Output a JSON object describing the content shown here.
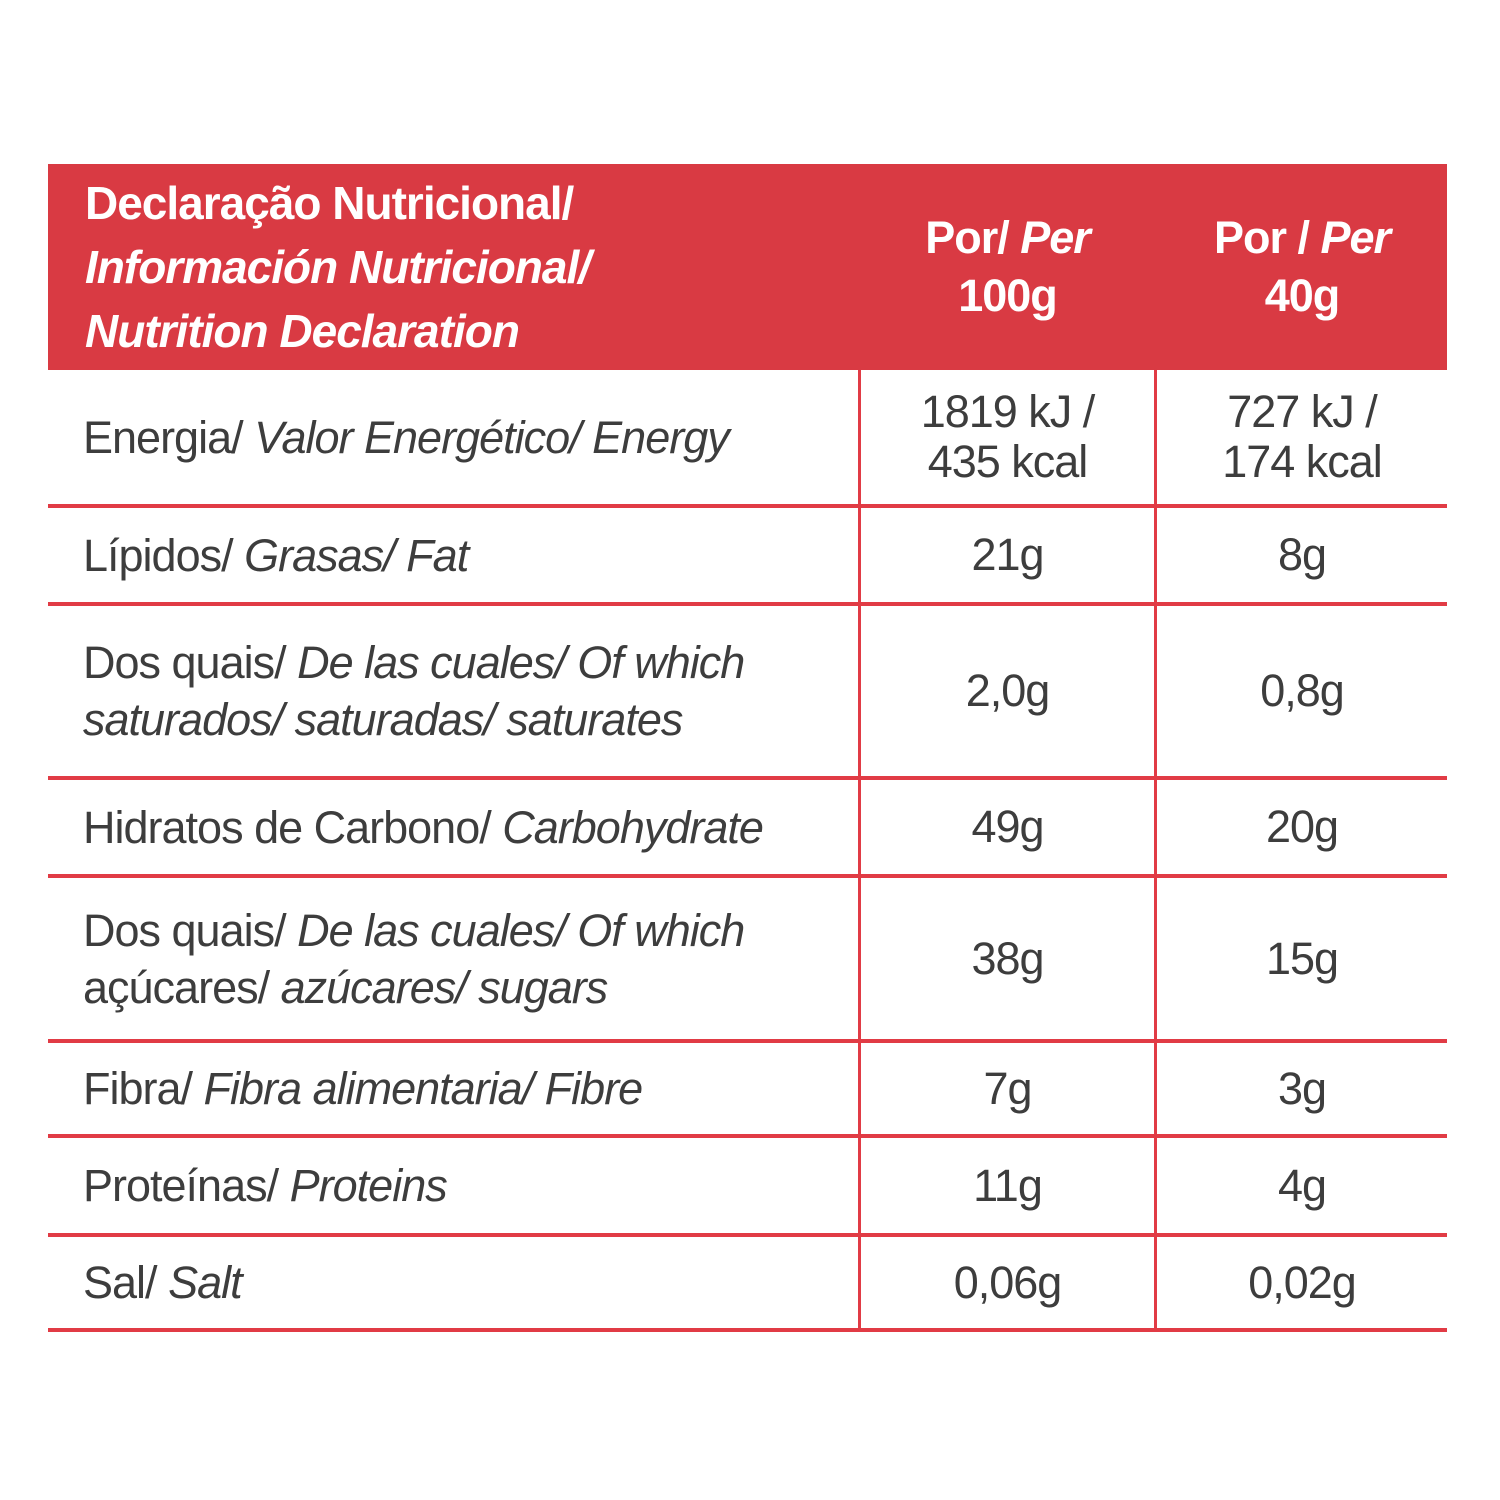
{
  "colors": {
    "header_bg": "#d93a43",
    "grid_line": "#e13b45",
    "header_text": "#ffffff",
    "body_text": "#3d3d3d",
    "background": "#ffffff"
  },
  "header": {
    "title_line1": "Declaração Nutricional/",
    "title_line2": "Información Nutricional/",
    "title_line3": "Nutrition Declaration",
    "col1_upright": "Por/",
    "col1_italic": "Per",
    "col1_amount": "100g",
    "col2_upright": "Por /",
    "col2_italic": "Per",
    "col2_amount": "40g"
  },
  "rows": [
    {
      "l1_pt": "Energia/",
      "l1_rest": "Valor Energético/ Energy",
      "v100_l1": "1819 kJ /",
      "v100_l2": "435 kcal",
      "v40_l1": "727 kJ /",
      "v40_l2": "174 kcal"
    },
    {
      "l1_pt": "Lípidos/",
      "l1_rest": "Grasas/ Fat",
      "v100": "21g",
      "v40": "8g"
    },
    {
      "l1_pt": "Dos quais/",
      "l1_rest": "De las cuales/ Of which",
      "l2_pt": "",
      "l2_rest": "saturados/ saturadas/ saturates",
      "v100": "2,0g",
      "v40": "0,8g"
    },
    {
      "l1_pt": "Hidratos de Carbono/",
      "l1_rest": "Carbohydrate",
      "v100": "49g",
      "v40": "20g"
    },
    {
      "l1_pt": "Dos quais/",
      "l1_rest": "De las cuales/ Of which",
      "l2_pt": "açúcares/",
      "l2_rest": "azúcares/ sugars",
      "v100": "38g",
      "v40": "15g"
    },
    {
      "l1_pt": "Fibra/",
      "l1_rest": "Fibra alimentaria/ Fibre",
      "v100": "7g",
      "v40": "3g"
    },
    {
      "l1_pt": "Proteínas/",
      "l1_rest": "Proteins",
      "v100": "11g",
      "v40": "4g"
    },
    {
      "l1_pt": "Sal/",
      "l1_rest": "Salt",
      "v100": "0,06g",
      "v40": "0,02g"
    }
  ]
}
